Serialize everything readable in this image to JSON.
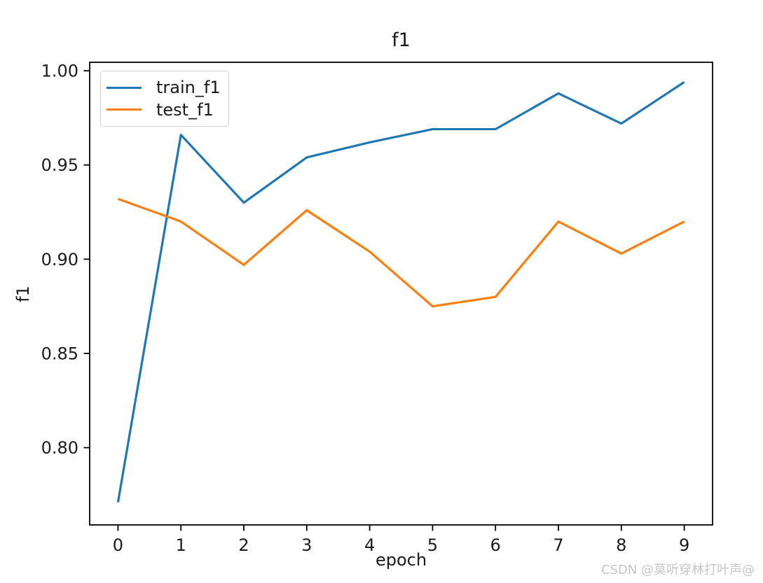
{
  "figure": {
    "title": "f1",
    "xlabel": "epoch",
    "ylabel": "f1"
  },
  "watermark": "CSDN @莫听穿林打叶声@",
  "chart_data": {
    "type": "line",
    "title": "f1",
    "xlabel": "epoch",
    "ylabel": "f1",
    "x": [
      0,
      1,
      2,
      3,
      4,
      5,
      6,
      7,
      8,
      9
    ],
    "series": [
      {
        "name": "train_f1",
        "color": "#1f77b4",
        "values": [
          0.771,
          0.966,
          0.93,
          0.954,
          0.962,
          0.969,
          0.969,
          0.988,
          0.972,
          0.994
        ]
      },
      {
        "name": "test_f1",
        "color": "#ff7f0e",
        "values": [
          0.932,
          0.92,
          0.897,
          0.926,
          0.904,
          0.875,
          0.88,
          0.92,
          0.903,
          0.92
        ]
      }
    ],
    "xlim": [
      -0.45,
      9.45
    ],
    "ylim": [
      0.759,
      1.0045
    ],
    "x_ticks": [
      0,
      1,
      2,
      3,
      4,
      5,
      6,
      7,
      8,
      9
    ],
    "x_tick_labels": [
      "0",
      "1",
      "2",
      "3",
      "4",
      "5",
      "6",
      "7",
      "8",
      "9"
    ],
    "y_ticks": [
      0.8,
      0.85,
      0.9,
      0.95,
      1.0
    ],
    "y_tick_labels": [
      "0.80",
      "0.85",
      "0.90",
      "0.95",
      "1.00"
    ],
    "grid": false,
    "legend_position": "upper-left",
    "axis_color": "#000000",
    "tick_label_color": "#1c1c1c"
  }
}
